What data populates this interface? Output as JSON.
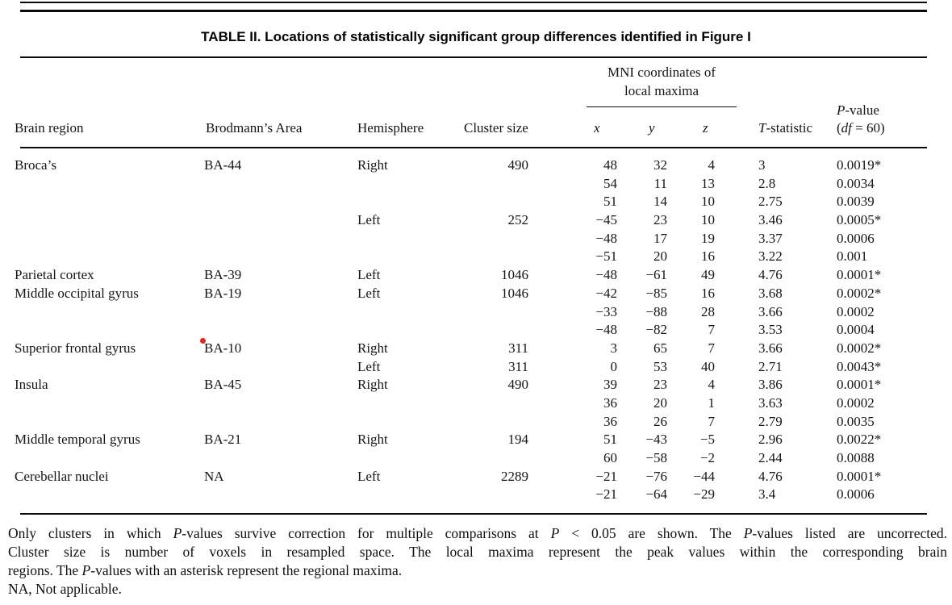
{
  "title": "TABLE II. Locations of statistically significant group differences identified in Figure I",
  "table": {
    "headers": {
      "brain_region": "Brain region",
      "brodmann": "Brodmann’s Area",
      "hemisphere": "Hemisphere",
      "cluster_size": "Cluster size",
      "mni_group_line1": "MNI coordinates of",
      "mni_group_line2": "local maxima",
      "x": "x",
      "y": "y",
      "z": "z",
      "t_statistic": "T-statistic",
      "p_value_line1": "P-value",
      "p_value_line2": "(df = 60)"
    },
    "rows": [
      {
        "region": "Broca’s",
        "ba": "BA-44",
        "hemisphere": "Right",
        "cluster": "490",
        "x": "48",
        "y": "32",
        "z": "4",
        "t": "3",
        "p": "0.0019*"
      },
      {
        "region": "",
        "ba": "",
        "hemisphere": "",
        "cluster": "",
        "x": "54",
        "y": "11",
        "z": "13",
        "t": "2.8",
        "p": "0.0034"
      },
      {
        "region": "",
        "ba": "",
        "hemisphere": "",
        "cluster": "",
        "x": "51",
        "y": "14",
        "z": "10",
        "t": "2.75",
        "p": "0.0039"
      },
      {
        "region": "",
        "ba": "",
        "hemisphere": "Left",
        "cluster": "252",
        "x": "−45",
        "y": "23",
        "z": "10",
        "t": "3.46",
        "p": "0.0005*"
      },
      {
        "region": "",
        "ba": "",
        "hemisphere": "",
        "cluster": "",
        "x": "−48",
        "y": "17",
        "z": "19",
        "t": "3.37",
        "p": "0.0006"
      },
      {
        "region": "",
        "ba": "",
        "hemisphere": "",
        "cluster": "",
        "x": "−51",
        "y": "20",
        "z": "16",
        "t": "3.22",
        "p": "0.001"
      },
      {
        "region": "Parietal cortex",
        "ba": "BA-39",
        "hemisphere": "Left",
        "cluster": "1046",
        "x": "−48",
        "y": "−61",
        "z": "49",
        "t": "4.76",
        "p": "0.0001*"
      },
      {
        "region": "Middle occipital gyrus",
        "ba": "BA-19",
        "hemisphere": "Left",
        "cluster": "1046",
        "x": "−42",
        "y": "−85",
        "z": "16",
        "t": "3.68",
        "p": "0.0002*"
      },
      {
        "region": "",
        "ba": "",
        "hemisphere": "",
        "cluster": "",
        "x": "−33",
        "y": "−88",
        "z": "28",
        "t": "3.66",
        "p": "0.0002"
      },
      {
        "region": "",
        "ba": "",
        "hemisphere": "",
        "cluster": "",
        "x": "−48",
        "y": "−82",
        "z": "7",
        "t": "3.53",
        "p": "0.0004"
      },
      {
        "region": "Superior frontal gyrus",
        "ba": "BA-10",
        "hemisphere": "Right",
        "cluster": "311",
        "x": "3",
        "y": "65",
        "z": "7",
        "t": "3.66",
        "p": "0.0002*"
      },
      {
        "region": "",
        "ba": "",
        "hemisphere": "Left",
        "cluster": "311",
        "x": "0",
        "y": "53",
        "z": "40",
        "t": "2.71",
        "p": "0.0043*"
      },
      {
        "region": "Insula",
        "ba": "BA-45",
        "hemisphere": "Right",
        "cluster": "490",
        "x": "39",
        "y": "23",
        "z": "4",
        "t": "3.86",
        "p": "0.0001*"
      },
      {
        "region": "",
        "ba": "",
        "hemisphere": "",
        "cluster": "",
        "x": "36",
        "y": "20",
        "z": "1",
        "t": "3.63",
        "p": "0.0002"
      },
      {
        "region": "",
        "ba": "",
        "hemisphere": "",
        "cluster": "",
        "x": "36",
        "y": "26",
        "z": "7",
        "t": "2.79",
        "p": "0.0035"
      },
      {
        "region": "Middle temporal gyrus",
        "ba": "BA-21",
        "hemisphere": "Right",
        "cluster": "194",
        "x": "51",
        "y": "−43",
        "z": "−5",
        "t": "2.96",
        "p": "0.0022*"
      },
      {
        "region": "",
        "ba": "",
        "hemisphere": "",
        "cluster": "",
        "x": "60",
        "y": "−58",
        "z": "−2",
        "t": "2.44",
        "p": "0.0088"
      },
      {
        "region": "Cerebellar nuclei",
        "ba": "NA",
        "hemisphere": "Left",
        "cluster": "2289",
        "x": "−21",
        "y": "−76",
        "z": "−44",
        "t": "4.76",
        "p": "0.0001*"
      },
      {
        "region": "",
        "ba": "",
        "hemisphere": "",
        "cluster": "",
        "x": "−21",
        "y": "−64",
        "z": "−29",
        "t": "3.4",
        "p": "0.0006"
      }
    ]
  },
  "footnotes": {
    "line1": "Only clusters in which P-values survive correction for multiple comparisons at P < 0.05 are shown. The P-values listed are uncorrected.",
    "line2": "Cluster size is number of voxels in resampled space. The local maxima represent the peak values within the corresponding brain",
    "line3": "regions. The P-values with an asterisk represent the regional maxima.",
    "line4": "NA, Not applicable."
  },
  "marker": {
    "color": "#e5251f"
  }
}
